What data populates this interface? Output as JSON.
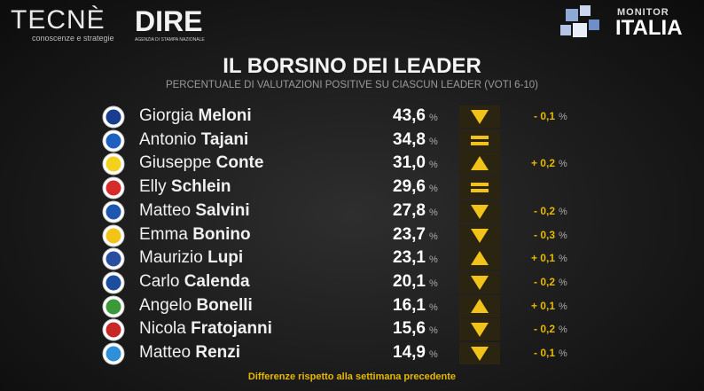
{
  "header": {
    "brand_left": "TECNÈ",
    "brand_left_sub": "conoscenze e strategie",
    "brand_mid": "DIRE",
    "brand_mid_sub": "AGENZIA DI STAMPA NAZIONALE",
    "brand_right_top": "MONITOR",
    "brand_right": "ITALIA",
    "title": "IL BORSINO DEI LEADER",
    "subtitle": "PERCENTUALE DI VALUTAZIONI POSITIVE SU CIASCUN LEADER (VOTI 6-10)"
  },
  "table": {
    "rows": [
      {
        "first": "Giorgia",
        "last": "Meloni",
        "value": "43,6",
        "unit": "%",
        "trend": "down",
        "change": "- 0,1",
        "change_unit": "%",
        "logo_color": "#1a3d8f"
      },
      {
        "first": "Antonio",
        "last": "Tajani",
        "value": "34,8",
        "unit": "%",
        "trend": "equal",
        "logo_color": "#1e5fbf"
      },
      {
        "first": "Giuseppe",
        "last": "Conte",
        "value": "31,0",
        "unit": "%",
        "trend": "up",
        "change": "+ 0,2",
        "change_unit": "%",
        "logo_color": "#f2d21c"
      },
      {
        "first": "Elly",
        "last": "Schlein",
        "value": "29,6",
        "unit": "%",
        "trend": "equal",
        "logo_color": "#d62b2b"
      },
      {
        "first": "Matteo",
        "last": "Salvini",
        "value": "27,8",
        "unit": "%",
        "trend": "down",
        "change": "- 0,2",
        "change_unit": "%",
        "logo_color": "#1f56b0"
      },
      {
        "first": "Emma",
        "last": "Bonino",
        "value": "23,7",
        "unit": "%",
        "trend": "down",
        "change": "- 0,3",
        "change_unit": "%",
        "logo_color": "#f0c419"
      },
      {
        "first": "Maurizio",
        "last": "Lupi",
        "value": "23,1",
        "unit": "%",
        "trend": "up",
        "change": "+ 0,1",
        "change_unit": "%",
        "logo_color": "#2a4fa0"
      },
      {
        "first": "Carlo",
        "last": "Calenda",
        "value": "20,1",
        "unit": "%",
        "trend": "down",
        "change": "- 0,2",
        "change_unit": "%",
        "logo_color": "#1d4e9e"
      },
      {
        "first": "Angelo",
        "last": "Bonelli",
        "value": "16,1",
        "unit": "%",
        "trend": "up",
        "change": "+ 0,1",
        "change_unit": "%",
        "logo_color": "#3a9a3a"
      },
      {
        "first": "Nicola",
        "last": "Fratojanni",
        "value": "15,6",
        "unit": "%",
        "trend": "down",
        "change": "- 0,2",
        "change_unit": "%",
        "logo_color": "#c62828"
      },
      {
        "first": "Matteo",
        "last": "Renzi",
        "value": "14,9",
        "unit": "%",
        "trend": "down",
        "change": "- 0,1",
        "change_unit": "%",
        "logo_color": "#2f8fd8"
      }
    ]
  },
  "footer": "Differenze rispetto alla settimana precedente"
}
